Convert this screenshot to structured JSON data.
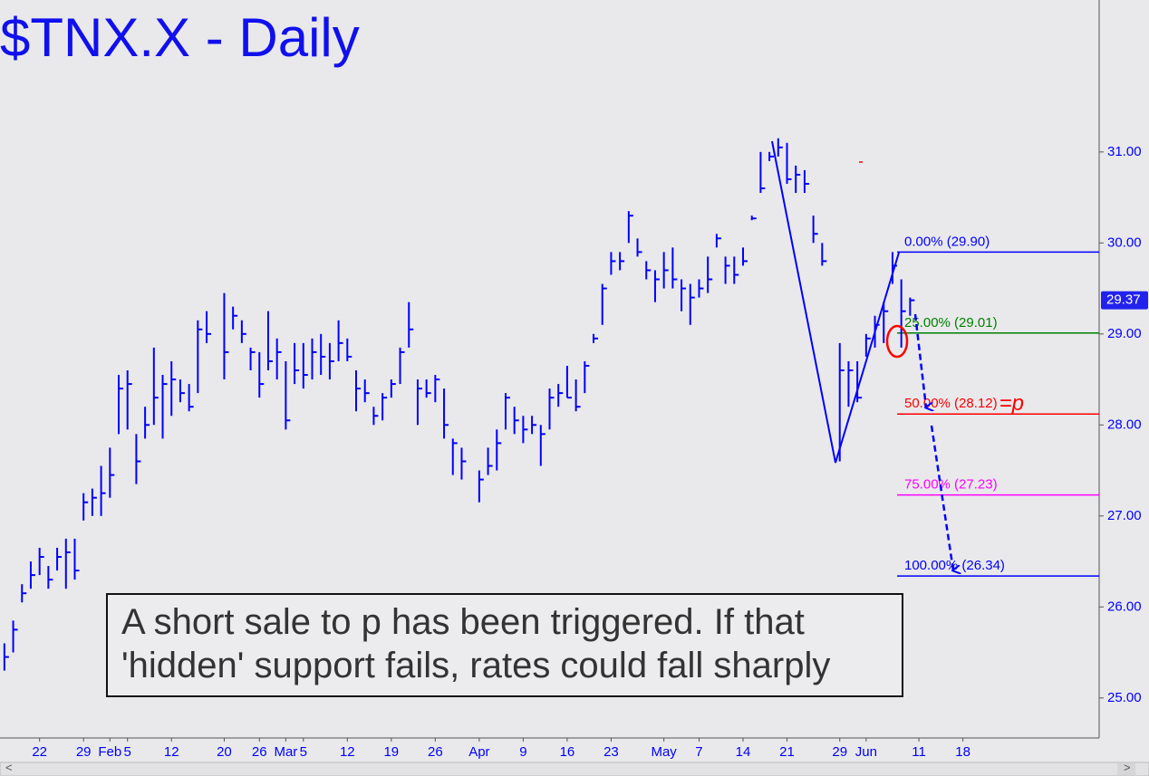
{
  "chart_data": {
    "type": "hlc",
    "title": "$TNX.X - Daily",
    "color": "#0000ff",
    "ylim": [
      24.56,
      32.67
    ],
    "yticks": [
      {
        "value": 25,
        "label": "25.00"
      },
      {
        "value": 26,
        "label": "26.00"
      },
      {
        "value": 27,
        "label": "27.00"
      },
      {
        "value": 28,
        "label": "28.00"
      },
      {
        "value": 29,
        "label": "29.00"
      },
      {
        "value": 30,
        "label": "30.00"
      },
      {
        "value": 31,
        "label": "31.00"
      }
    ],
    "last_price": 29.37,
    "categories": [
      null,
      null,
      null,
      null,
      "22",
      null,
      null,
      null,
      null,
      "29",
      null,
      null,
      "Feb",
      null,
      "5",
      null,
      null,
      null,
      null,
      "12",
      null,
      null,
      null,
      null,
      null,
      "20",
      null,
      null,
      null,
      "26",
      null,
      null,
      "Mar",
      null,
      "5",
      null,
      null,
      null,
      null,
      "12",
      null,
      null,
      null,
      null,
      "19",
      null,
      null,
      null,
      null,
      "26",
      null,
      null,
      null,
      null,
      "Apr",
      null,
      null,
      null,
      null,
      "9",
      null,
      null,
      null,
      null,
      "16",
      null,
      null,
      null,
      null,
      "23",
      null,
      null,
      null,
      null,
      null,
      "May",
      null,
      null,
      null,
      "7",
      null,
      null,
      null,
      null,
      "14",
      null,
      null,
      null,
      null,
      "21",
      null,
      null,
      null,
      null,
      null,
      "29",
      null,
      null,
      "Jun",
      null,
      null,
      null,
      null,
      null,
      "11",
      null,
      null,
      null,
      null,
      "18",
      null,
      null,
      null,
      null,
      null,
      null,
      null,
      null,
      null,
      null,
      null,
      null,
      null,
      null,
      null
    ],
    "high": [
      25.6,
      25.85,
      26.25,
      26.5,
      26.65,
      26.45,
      26.65,
      26.75,
      26.75,
      27.25,
      27.3,
      27.55,
      27.75,
      28.55,
      28.6,
      27.9,
      28.2,
      28.85,
      28.55,
      28.7,
      28.5,
      28.45,
      29.15,
      29.25,
      null,
      29.45,
      29.3,
      29.15,
      28.85,
      28.8,
      29.25,
      28.95,
      28.7,
      28.9,
      28.9,
      28.95,
      29.0,
      28.9,
      29.15,
      28.95,
      28.6,
      28.5,
      28.2,
      28.35,
      28.5,
      28.85,
      29.35,
      28.5,
      28.5,
      28.55,
      28.4,
      27.85,
      27.75,
      null,
      27.5,
      27.75,
      27.95,
      28.35,
      28.2,
      28.1,
      28.1,
      28.0,
      28.4,
      28.45,
      28.65,
      28.5,
      28.7,
      29.0,
      29.55,
      29.9,
      29.9,
      30.35,
      30.05,
      29.8,
      29.7,
      29.9,
      29.95,
      29.6,
      29.55,
      29.6,
      29.85,
      30.1,
      29.85,
      29.85,
      29.95,
      30.3,
      31.0,
      31.0,
      31.15,
      31.1,
      30.85,
      30.8,
      30.3,
      30.0,
      null,
      28.9,
      28.7,
      28.7,
      29.0,
      29.2,
      29.35,
      29.9,
      29.6,
      29.4,
      null,
      null,
      null,
      null,
      null,
      null,
      null,
      null,
      null,
      null,
      null,
      null,
      null,
      null,
      null,
      null,
      null,
      null,
      null,
      null,
      null
    ],
    "low": [
      25.3,
      25.5,
      26.05,
      26.2,
      26.35,
      26.2,
      26.4,
      26.2,
      26.3,
      26.95,
      27.0,
      27.0,
      27.2,
      27.9,
      27.95,
      27.35,
      27.85,
      28.0,
      27.85,
      28.1,
      28.25,
      28.15,
      28.35,
      28.9,
      null,
      28.5,
      29.05,
      28.9,
      28.6,
      28.3,
      28.6,
      28.5,
      27.95,
      28.45,
      28.4,
      28.5,
      28.55,
      28.5,
      28.7,
      28.7,
      28.15,
      28.25,
      28.0,
      28.05,
      28.3,
      28.45,
      28.85,
      28.0,
      28.3,
      28.25,
      27.85,
      27.45,
      27.4,
      null,
      27.15,
      27.45,
      27.5,
      27.95,
      27.9,
      27.8,
      27.9,
      27.55,
      27.95,
      28.2,
      28.3,
      28.15,
      28.35,
      28.9,
      29.1,
      29.65,
      29.7,
      30.0,
      29.85,
      29.6,
      29.35,
      29.5,
      29.5,
      29.25,
      29.1,
      29.4,
      29.45,
      29.95,
      29.55,
      29.55,
      29.75,
      30.25,
      30.55,
      30.9,
      30.95,
      30.65,
      30.55,
      30.55,
      30.0,
      29.75,
      null,
      27.6,
      28.2,
      28.25,
      28.75,
      28.85,
      28.9,
      29.55,
      28.85,
      29.2,
      null,
      null,
      null,
      null,
      null,
      null,
      null,
      null,
      null,
      null,
      null,
      null,
      null,
      null,
      null,
      null,
      null,
      null,
      null,
      null,
      null
    ],
    "close": [
      25.45,
      25.75,
      26.15,
      26.35,
      26.55,
      26.3,
      26.55,
      26.6,
      26.4,
      27.15,
      27.2,
      27.25,
      27.45,
      28.4,
      28.45,
      27.6,
      28.0,
      28.3,
      28.45,
      28.5,
      28.35,
      28.2,
      29.05,
      29.0,
      null,
      28.8,
      29.2,
      29.0,
      28.8,
      28.45,
      28.7,
      28.8,
      28.05,
      28.6,
      28.55,
      28.8,
      28.75,
      28.7,
      28.9,
      28.75,
      28.4,
      28.35,
      28.1,
      28.3,
      28.45,
      28.8,
      29.05,
      28.4,
      28.35,
      28.5,
      28.0,
      27.8,
      27.6,
      null,
      27.4,
      27.55,
      27.8,
      28.3,
      28.05,
      27.95,
      28.0,
      27.9,
      28.3,
      28.35,
      28.3,
      28.2,
      28.65,
      28.95,
      29.5,
      29.8,
      29.8,
      30.3,
      29.9,
      29.7,
      29.6,
      29.7,
      29.6,
      29.5,
      29.4,
      29.5,
      29.6,
      30.05,
      29.75,
      29.65,
      29.8,
      30.27,
      30.6,
      30.95,
      31.05,
      30.7,
      30.75,
      30.65,
      30.1,
      29.8,
      null,
      28.6,
      28.6,
      28.3,
      28.95,
      29.1,
      29.25,
      29.75,
      29.25,
      29.37,
      null,
      null,
      null,
      null,
      null,
      null,
      null,
      null,
      null,
      null,
      null,
      null,
      null,
      null,
      null,
      null,
      null,
      null,
      null,
      null,
      null
    ],
    "levels": [
      {
        "label": "0.00% (29.90)",
        "value": 29.9,
        "color": "#0000ff"
      },
      {
        "label": "25.00% (29.01)",
        "value": 29.01,
        "color": "#008000"
      },
      {
        "label": "50.00% (28.12)",
        "value": 28.12,
        "color": "#ff0000"
      },
      {
        "label": "75.00% (27.23)",
        "value": 27.23,
        "color": "#ff00ff"
      },
      {
        "label": "100.00% (26.34)",
        "value": 26.34,
        "color": "#0000ff"
      }
    ],
    "target_label": "=p",
    "annotation": [
      "A short sale to p has been triggered. If that",
      "'hidden' support fails, rates could fall sharply"
    ]
  }
}
